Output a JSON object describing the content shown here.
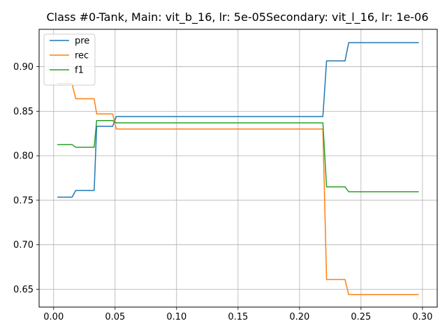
{
  "chart_data": {
    "type": "line",
    "title": "Class #0-Tank, Main: vit_b_16, lr: 5e-05Secondary: vit_l_16, lr: 1e-06",
    "xlabel": "",
    "ylabel": "",
    "xlim": [
      -0.0118,
      0.312
    ],
    "ylim": [
      0.63,
      0.942
    ],
    "xticks": [
      0.0,
      0.05,
      0.1,
      0.15,
      0.2,
      0.25,
      0.3
    ],
    "xtick_labels": [
      "0.00",
      "0.05",
      "0.10",
      "0.15",
      "0.20",
      "0.25",
      "0.30"
    ],
    "yticks": [
      0.65,
      0.7,
      0.75,
      0.8,
      0.85,
      0.9
    ],
    "ytick_labels": [
      "0.65",
      "0.70",
      "0.75",
      "0.80",
      "0.85",
      "0.90"
    ],
    "grid": true,
    "legend_position": "top-left",
    "series": [
      {
        "name": "pre",
        "color": "#1f77b4",
        "x": [
          0.003,
          0.015,
          0.018,
          0.033,
          0.035,
          0.048,
          0.051,
          0.219,
          0.222,
          0.237,
          0.24,
          0.297
        ],
        "y": [
          0.7535,
          0.7535,
          0.761,
          0.761,
          0.833,
          0.833,
          0.844,
          0.844,
          0.9065,
          0.9065,
          0.927,
          0.927
        ]
      },
      {
        "name": "rec",
        "color": "#ff7f0e",
        "x": [
          0.003,
          0.015,
          0.018,
          0.033,
          0.035,
          0.048,
          0.051,
          0.219,
          0.222,
          0.237,
          0.24,
          0.297
        ],
        "y": [
          0.881,
          0.881,
          0.864,
          0.864,
          0.847,
          0.847,
          0.83,
          0.83,
          0.661,
          0.661,
          0.644,
          0.644
        ]
      },
      {
        "name": "f1",
        "color": "#2ca02c",
        "x": [
          0.003,
          0.015,
          0.018,
          0.033,
          0.035,
          0.048,
          0.051,
          0.219,
          0.222,
          0.237,
          0.24,
          0.297
        ],
        "y": [
          0.8125,
          0.8125,
          0.8095,
          0.8095,
          0.8395,
          0.8395,
          0.837,
          0.837,
          0.765,
          0.765,
          0.7595,
          0.7595
        ]
      }
    ]
  }
}
